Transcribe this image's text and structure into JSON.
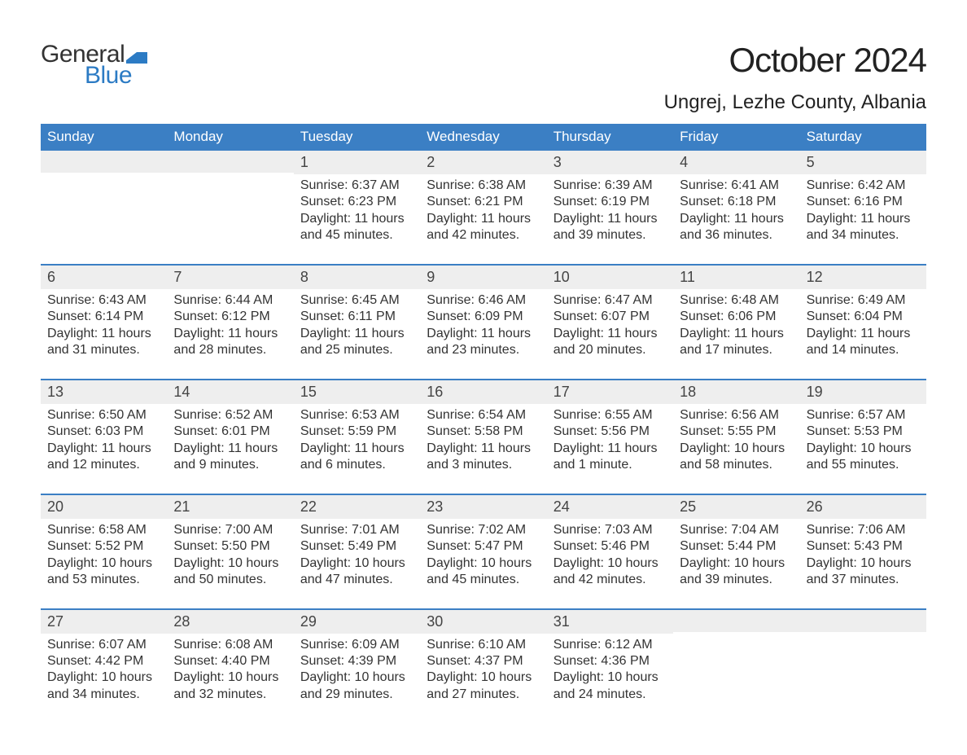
{
  "logo": {
    "text_general": "General",
    "text_blue": "Blue",
    "flag_color": "#2c7bc4"
  },
  "title": "October 2024",
  "location": "Ungrej, Lezhe County, Albania",
  "colors": {
    "header_bg": "#3b7fc4",
    "header_text": "#ffffff",
    "daynum_bg": "#eeeeee",
    "week_border": "#3b7fc4",
    "body_text": "#333333",
    "logo_blue": "#2c7bc4",
    "background": "#ffffff"
  },
  "weekdays": [
    "Sunday",
    "Monday",
    "Tuesday",
    "Wednesday",
    "Thursday",
    "Friday",
    "Saturday"
  ],
  "weeks": [
    [
      {
        "n": "",
        "sunrise": "",
        "sunset": "",
        "daylight": ""
      },
      {
        "n": "",
        "sunrise": "",
        "sunset": "",
        "daylight": ""
      },
      {
        "n": "1",
        "sunrise": "Sunrise: 6:37 AM",
        "sunset": "Sunset: 6:23 PM",
        "daylight": "Daylight: 11 hours and 45 minutes."
      },
      {
        "n": "2",
        "sunrise": "Sunrise: 6:38 AM",
        "sunset": "Sunset: 6:21 PM",
        "daylight": "Daylight: 11 hours and 42 minutes."
      },
      {
        "n": "3",
        "sunrise": "Sunrise: 6:39 AM",
        "sunset": "Sunset: 6:19 PM",
        "daylight": "Daylight: 11 hours and 39 minutes."
      },
      {
        "n": "4",
        "sunrise": "Sunrise: 6:41 AM",
        "sunset": "Sunset: 6:18 PM",
        "daylight": "Daylight: 11 hours and 36 minutes."
      },
      {
        "n": "5",
        "sunrise": "Sunrise: 6:42 AM",
        "sunset": "Sunset: 6:16 PM",
        "daylight": "Daylight: 11 hours and 34 minutes."
      }
    ],
    [
      {
        "n": "6",
        "sunrise": "Sunrise: 6:43 AM",
        "sunset": "Sunset: 6:14 PM",
        "daylight": "Daylight: 11 hours and 31 minutes."
      },
      {
        "n": "7",
        "sunrise": "Sunrise: 6:44 AM",
        "sunset": "Sunset: 6:12 PM",
        "daylight": "Daylight: 11 hours and 28 minutes."
      },
      {
        "n": "8",
        "sunrise": "Sunrise: 6:45 AM",
        "sunset": "Sunset: 6:11 PM",
        "daylight": "Daylight: 11 hours and 25 minutes."
      },
      {
        "n": "9",
        "sunrise": "Sunrise: 6:46 AM",
        "sunset": "Sunset: 6:09 PM",
        "daylight": "Daylight: 11 hours and 23 minutes."
      },
      {
        "n": "10",
        "sunrise": "Sunrise: 6:47 AM",
        "sunset": "Sunset: 6:07 PM",
        "daylight": "Daylight: 11 hours and 20 minutes."
      },
      {
        "n": "11",
        "sunrise": "Sunrise: 6:48 AM",
        "sunset": "Sunset: 6:06 PM",
        "daylight": "Daylight: 11 hours and 17 minutes."
      },
      {
        "n": "12",
        "sunrise": "Sunrise: 6:49 AM",
        "sunset": "Sunset: 6:04 PM",
        "daylight": "Daylight: 11 hours and 14 minutes."
      }
    ],
    [
      {
        "n": "13",
        "sunrise": "Sunrise: 6:50 AM",
        "sunset": "Sunset: 6:03 PM",
        "daylight": "Daylight: 11 hours and 12 minutes."
      },
      {
        "n": "14",
        "sunrise": "Sunrise: 6:52 AM",
        "sunset": "Sunset: 6:01 PM",
        "daylight": "Daylight: 11 hours and 9 minutes."
      },
      {
        "n": "15",
        "sunrise": "Sunrise: 6:53 AM",
        "sunset": "Sunset: 5:59 PM",
        "daylight": "Daylight: 11 hours and 6 minutes."
      },
      {
        "n": "16",
        "sunrise": "Sunrise: 6:54 AM",
        "sunset": "Sunset: 5:58 PM",
        "daylight": "Daylight: 11 hours and 3 minutes."
      },
      {
        "n": "17",
        "sunrise": "Sunrise: 6:55 AM",
        "sunset": "Sunset: 5:56 PM",
        "daylight": "Daylight: 11 hours and 1 minute."
      },
      {
        "n": "18",
        "sunrise": "Sunrise: 6:56 AM",
        "sunset": "Sunset: 5:55 PM",
        "daylight": "Daylight: 10 hours and 58 minutes."
      },
      {
        "n": "19",
        "sunrise": "Sunrise: 6:57 AM",
        "sunset": "Sunset: 5:53 PM",
        "daylight": "Daylight: 10 hours and 55 minutes."
      }
    ],
    [
      {
        "n": "20",
        "sunrise": "Sunrise: 6:58 AM",
        "sunset": "Sunset: 5:52 PM",
        "daylight": "Daylight: 10 hours and 53 minutes."
      },
      {
        "n": "21",
        "sunrise": "Sunrise: 7:00 AM",
        "sunset": "Sunset: 5:50 PM",
        "daylight": "Daylight: 10 hours and 50 minutes."
      },
      {
        "n": "22",
        "sunrise": "Sunrise: 7:01 AM",
        "sunset": "Sunset: 5:49 PM",
        "daylight": "Daylight: 10 hours and 47 minutes."
      },
      {
        "n": "23",
        "sunrise": "Sunrise: 7:02 AM",
        "sunset": "Sunset: 5:47 PM",
        "daylight": "Daylight: 10 hours and 45 minutes."
      },
      {
        "n": "24",
        "sunrise": "Sunrise: 7:03 AM",
        "sunset": "Sunset: 5:46 PM",
        "daylight": "Daylight: 10 hours and 42 minutes."
      },
      {
        "n": "25",
        "sunrise": "Sunrise: 7:04 AM",
        "sunset": "Sunset: 5:44 PM",
        "daylight": "Daylight: 10 hours and 39 minutes."
      },
      {
        "n": "26",
        "sunrise": "Sunrise: 7:06 AM",
        "sunset": "Sunset: 5:43 PM",
        "daylight": "Daylight: 10 hours and 37 minutes."
      }
    ],
    [
      {
        "n": "27",
        "sunrise": "Sunrise: 6:07 AM",
        "sunset": "Sunset: 4:42 PM",
        "daylight": "Daylight: 10 hours and 34 minutes."
      },
      {
        "n": "28",
        "sunrise": "Sunrise: 6:08 AM",
        "sunset": "Sunset: 4:40 PM",
        "daylight": "Daylight: 10 hours and 32 minutes."
      },
      {
        "n": "29",
        "sunrise": "Sunrise: 6:09 AM",
        "sunset": "Sunset: 4:39 PM",
        "daylight": "Daylight: 10 hours and 29 minutes."
      },
      {
        "n": "30",
        "sunrise": "Sunrise: 6:10 AM",
        "sunset": "Sunset: 4:37 PM",
        "daylight": "Daylight: 10 hours and 27 minutes."
      },
      {
        "n": "31",
        "sunrise": "Sunrise: 6:12 AM",
        "sunset": "Sunset: 4:36 PM",
        "daylight": "Daylight: 10 hours and 24 minutes."
      },
      {
        "n": "",
        "sunrise": "",
        "sunset": "",
        "daylight": ""
      },
      {
        "n": "",
        "sunrise": "",
        "sunset": "",
        "daylight": ""
      }
    ]
  ]
}
